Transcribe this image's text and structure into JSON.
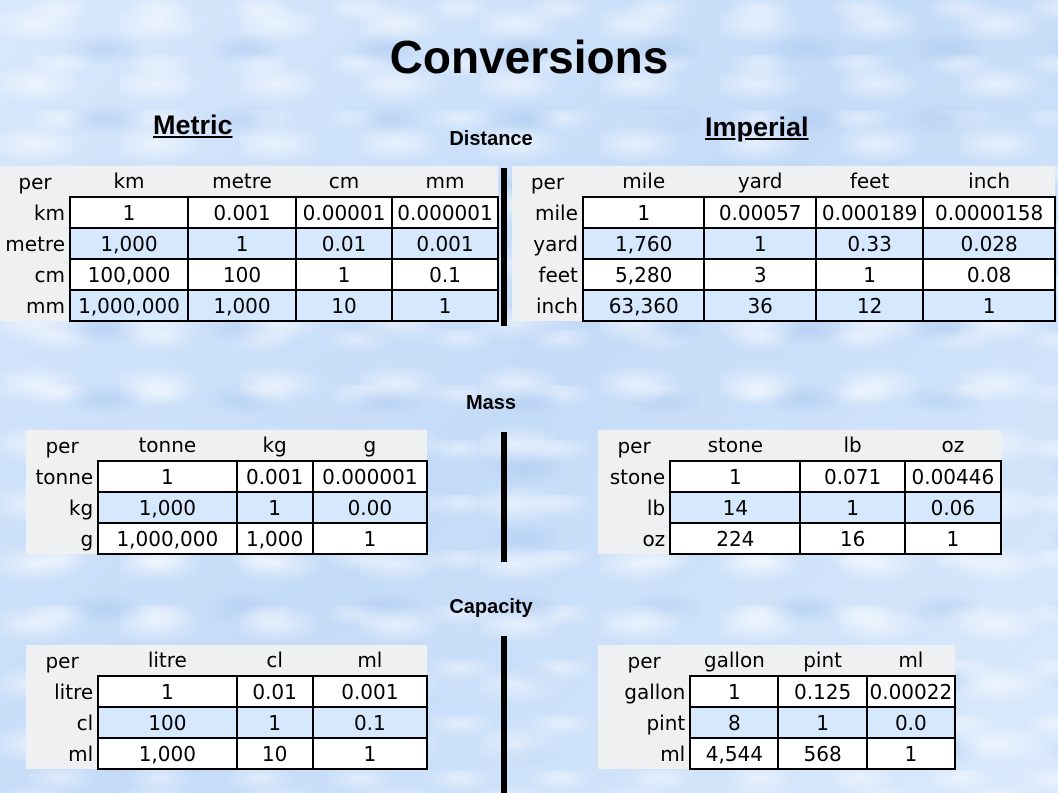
{
  "title": "Conversions",
  "headings": {
    "metric": "Metric",
    "imperial": "Imperial"
  },
  "sections": {
    "distance": "Distance",
    "mass": "Mass",
    "capacity": "Capacity"
  },
  "tables": {
    "distance_metric": {
      "columns": [
        "per",
        "km",
        "metre",
        "cm",
        "mm"
      ],
      "rows": [
        [
          "km",
          "1",
          "0.001",
          "0.00001",
          "0.000001"
        ],
        [
          "metre",
          "1,000",
          "1",
          "0.01",
          "0.001"
        ],
        [
          "cm",
          "100,000",
          "100",
          "1",
          "0.1"
        ],
        [
          "mm",
          "1,000,000",
          "1,000",
          "10",
          "1"
        ]
      ]
    },
    "distance_imperial": {
      "columns": [
        "per",
        "mile",
        "yard",
        "feet",
        "inch"
      ],
      "rows": [
        [
          "mile",
          "1",
          "0.00057",
          "0.000189",
          "0.0000158"
        ],
        [
          "yard",
          "1,760",
          "1",
          "0.33",
          "0.028"
        ],
        [
          "feet",
          "5,280",
          "3",
          "1",
          "0.08"
        ],
        [
          "inch",
          "63,360",
          "36",
          "12",
          "1"
        ]
      ]
    },
    "mass_metric": {
      "columns": [
        "per",
        "tonne",
        "kg",
        "g"
      ],
      "rows": [
        [
          "tonne",
          "1",
          "0.001",
          "0.000001"
        ],
        [
          "kg",
          "1,000",
          "1",
          "0.00"
        ],
        [
          "g",
          "1,000,000",
          "1,000",
          "1"
        ]
      ]
    },
    "mass_imperial": {
      "columns": [
        "per",
        "stone",
        "lb",
        "oz"
      ],
      "rows": [
        [
          "stone",
          "1",
          "0.071",
          "0.00446"
        ],
        [
          "lb",
          "14",
          "1",
          "0.06"
        ],
        [
          "oz",
          "224",
          "16",
          "1"
        ]
      ]
    },
    "capacity_metric": {
      "columns": [
        "per",
        "litre",
        "cl",
        "ml"
      ],
      "rows": [
        [
          "litre",
          "1",
          "0.01",
          "0.001"
        ],
        [
          "cl",
          "100",
          "1",
          "0.1"
        ],
        [
          "ml",
          "1,000",
          "10",
          "1"
        ]
      ]
    },
    "capacity_imperial": {
      "columns": [
        "per",
        "gallon",
        "pint",
        "ml"
      ],
      "rows": [
        [
          "gallon",
          "1",
          "0.125",
          "0.00022"
        ],
        [
          "pint",
          "8",
          "1",
          "0.0"
        ],
        [
          "ml",
          "4,544",
          "568",
          "1"
        ]
      ]
    }
  }
}
